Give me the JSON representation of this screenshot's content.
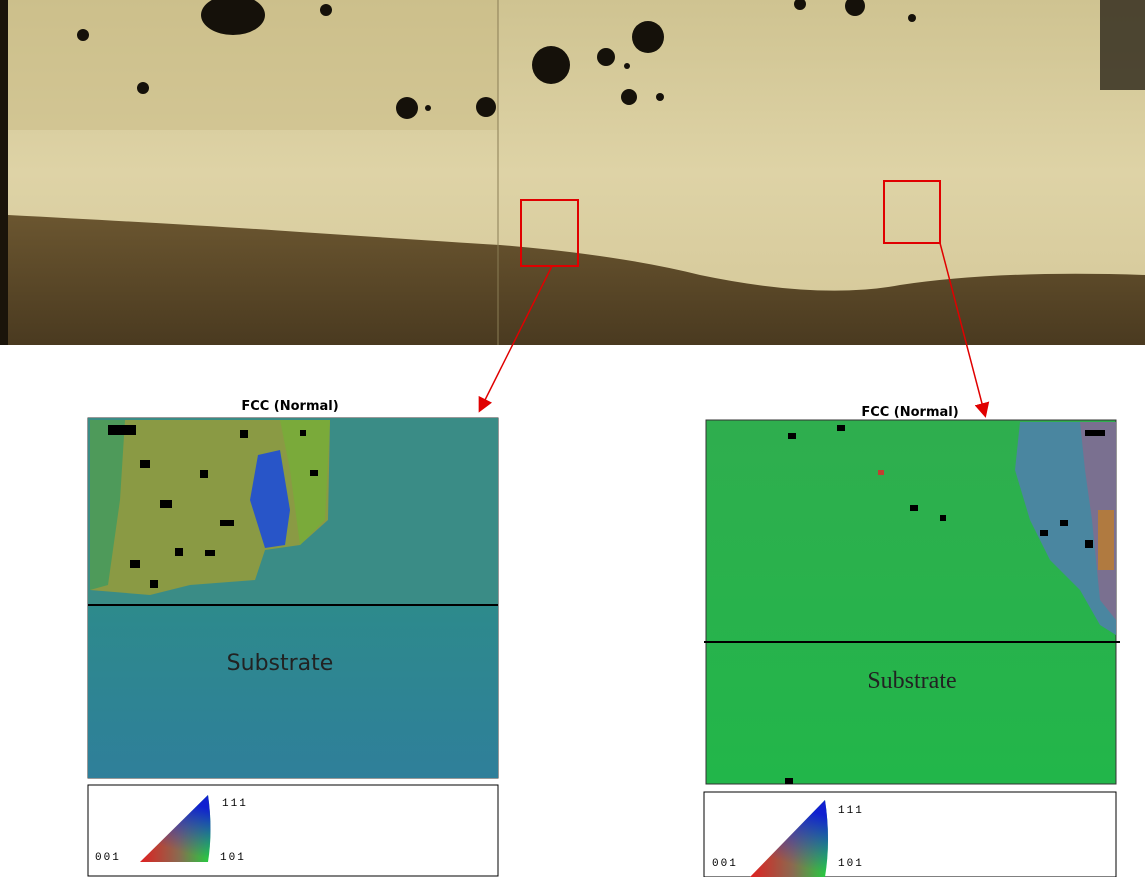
{
  "panels": [
    {
      "title": "FCC (Normal)",
      "label": "Substrate",
      "legend": {
        "top": "111",
        "left": "001",
        "right": "101"
      }
    },
    {
      "title": "FCC (Normal)",
      "label": "Substrate",
      "legend": {
        "top": "111",
        "left": "001",
        "right": "101"
      }
    }
  ]
}
